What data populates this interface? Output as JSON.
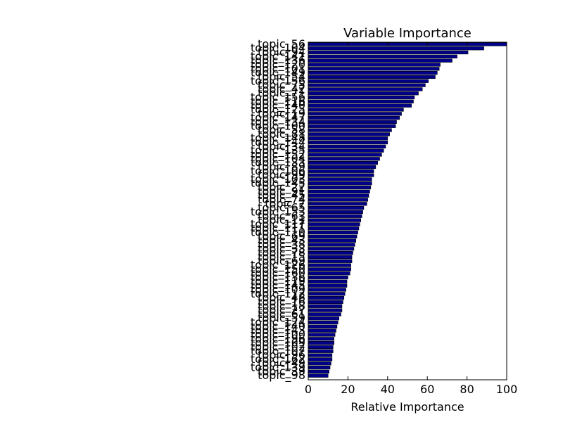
{
  "chart_data": {
    "type": "bar",
    "orientation": "horizontal",
    "title": "Variable Importance",
    "xlabel": "Relative Importance",
    "ylabel": "",
    "xlim": [
      0,
      100
    ],
    "xticks": [
      "0",
      "20",
      "40",
      "60",
      "80",
      "100"
    ],
    "bar_color": "#00008b",
    "grid": false,
    "categories": [
      "topic_56",
      "topic_104",
      "topic_94",
      "topic_141",
      "topic_136",
      "topic_120",
      "topic_101",
      "topic_149",
      "topic_54",
      "topic_156",
      "topic_75",
      "topic_42",
      "topic_71",
      "topic_156",
      "topic_116",
      "topic_140",
      "topic_125",
      "topic_19",
      "topic_147",
      "topic_134",
      "topic_100",
      "topic_58",
      "topic_81",
      "topic_148",
      "topic_144",
      "topic_34",
      "topic_135",
      "topic_152",
      "topic_104",
      "topic_133",
      "topic_89",
      "topic_106",
      "topic_99",
      "topic_103",
      "topic_145",
      "topic_22",
      "topic_91",
      "topic_45",
      "topic_74",
      "topic_7",
      "topic_65",
      "topic_153",
      "topic_63",
      "topic_11",
      "topic_117",
      "topic_111",
      "topic_110",
      "topic_69",
      "topic_43",
      "topic_38",
      "topic_33",
      "topic_78",
      "topic_15",
      "topic_69",
      "topic_126",
      "topic_150",
      "topic_160",
      "topic_136",
      "topic_119",
      "topic_145",
      "topic_109",
      "topic_112",
      "topic_48",
      "topic_16",
      "topic_18",
      "topic_27",
      "topic_61",
      "topic_59",
      "topic_124",
      "topic_140",
      "topic_143",
      "topic_100",
      "topic_196",
      "topic_109",
      "topic_102",
      "topic_107",
      "topic_96",
      "topic_162",
      "topic_49",
      "topic_139",
      "topic_39",
      "topic_98"
    ],
    "values": [
      100,
      88.5,
      80.5,
      75,
      72.5,
      66.5,
      66,
      65,
      64,
      60.5,
      59,
      57.5,
      55.5,
      53.5,
      53,
      52,
      48,
      47,
      46,
      44.5,
      44,
      42,
      41,
      40,
      40,
      39,
      38,
      37,
      36,
      35,
      34,
      33,
      33,
      32,
      32,
      31.5,
      31,
      30.5,
      30,
      29.5,
      28,
      27.5,
      27,
      26.5,
      26,
      25.5,
      25,
      24.5,
      24,
      23.5,
      23,
      22.5,
      22,
      22,
      21.5,
      21.5,
      21,
      20,
      19.5,
      19.5,
      19,
      18.5,
      18,
      17.5,
      17,
      17,
      16.5,
      15.5,
      15,
      14.5,
      14,
      13.5,
      13,
      13,
      12.5,
      12.5,
      12,
      12,
      11.5,
      11,
      10.5,
      10
    ]
  }
}
